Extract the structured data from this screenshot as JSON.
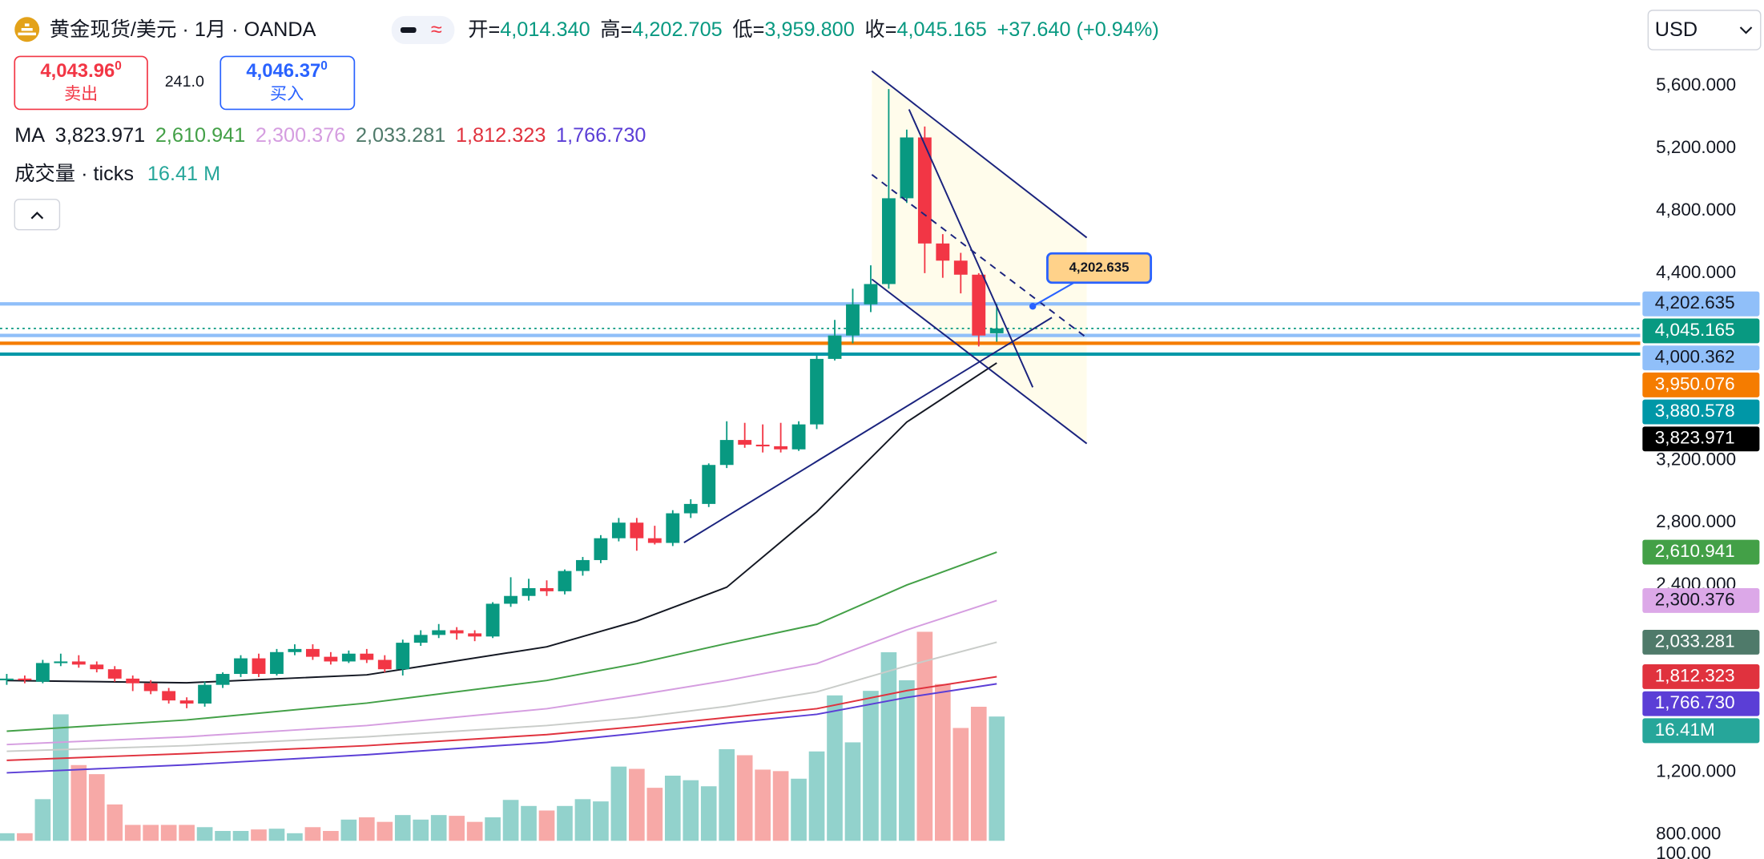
{
  "header": {
    "title": "黄金现货/美元 · 1月 · OANDA",
    "open_label": "开=",
    "open": "4,014.340",
    "high_label": "高=",
    "high": "4,202.705",
    "low_label": "低=",
    "low": "3,959.800",
    "close_label": "收=",
    "close": "4,045.165",
    "change": "+37.640 (+0.94%)",
    "currency": "USD"
  },
  "trade": {
    "sell_price": "4,043.96",
    "sell_sup": "0",
    "sell_label": "卖出",
    "spread": "241.0",
    "buy_price": "4,046.37",
    "buy_sup": "0",
    "buy_label": "买入"
  },
  "legend": {
    "ma_label": "MA",
    "ma_values": [
      {
        "text": "3,823.971",
        "color": "#131722"
      },
      {
        "text": "2,610.941",
        "color": "#43a047"
      },
      {
        "text": "2,300.376",
        "color": "#d59de0"
      },
      {
        "text": "2,033.281",
        "color": "#4f7a6a"
      },
      {
        "text": "1,812.323",
        "color": "#e0323e"
      },
      {
        "text": "1,766.730",
        "color": "#5b3ed6"
      }
    ],
    "volume_label": "成交量 · ticks",
    "volume_value": "16.41 M"
  },
  "callout": "4,202.635",
  "chart_data": {
    "type": "candlestick",
    "open": [
      1790,
      1800,
      1780,
      1900,
      1910,
      1890,
      1860,
      1800,
      1770,
      1720,
      1660,
      1640,
      1760,
      1830,
      1930,
      1830,
      1970,
      1990,
      1940,
      1910,
      1960,
      1920,
      1860,
      2030,
      2080,
      2110,
      2090,
      2070,
      2280,
      2330,
      2380,
      2360,
      2490,
      2560,
      2700,
      2800,
      2700,
      2670,
      2860,
      2920,
      3170,
      3330,
      3300,
      3290,
      3270,
      3430,
      3850,
      4000,
      4200,
      4330,
      4880,
      5270,
      4590,
      4480,
      4390,
      4014.34
    ],
    "high": [
      1830,
      1820,
      1920,
      1960,
      1950,
      1910,
      1880,
      1820,
      1790,
      1740,
      1680,
      1780,
      1840,
      1950,
      1960,
      1990,
      2020,
      2020,
      1970,
      1980,
      1990,
      1950,
      2050,
      2110,
      2150,
      2130,
      2110,
      2290,
      2450,
      2440,
      2430,
      2500,
      2580,
      2720,
      2830,
      2830,
      2780,
      2880,
      2950,
      3180,
      3450,
      3440,
      3430,
      3440,
      3450,
      3870,
      4100,
      4300,
      4450,
      5580,
      5320,
      5340,
      4650,
      4530,
      4400,
      4202.705
    ],
    "low": [
      1760,
      1770,
      1770,
      1880,
      1870,
      1840,
      1780,
      1720,
      1700,
      1640,
      1610,
      1620,
      1740,
      1810,
      1810,
      1820,
      1950,
      1920,
      1890,
      1900,
      1900,
      1840,
      1820,
      2010,
      2060,
      2050,
      2040,
      2060,
      2260,
      2300,
      2330,
      2340,
      2460,
      2540,
      2680,
      2620,
      2660,
      2650,
      2830,
      2900,
      3150,
      3280,
      3250,
      3250,
      3260,
      3400,
      3840,
      3950,
      4150,
      4300,
      4850,
      4400,
      4370,
      4270,
      3930,
      3959.8
    ],
    "close": [
      1800,
      1790,
      1900,
      1910,
      1890,
      1860,
      1800,
      1770,
      1720,
      1660,
      1640,
      1760,
      1830,
      1930,
      1830,
      1970,
      1990,
      1940,
      1910,
      1960,
      1920,
      1860,
      2030,
      2080,
      2110,
      2090,
      2070,
      2280,
      2330,
      2380,
      2360,
      2490,
      2560,
      2700,
      2800,
      2700,
      2670,
      2860,
      2920,
      3170,
      3330,
      3300,
      3290,
      3270,
      3430,
      3850,
      4000,
      4200,
      4330,
      4880,
      5270,
      4590,
      4480,
      4390,
      4000,
      4045.165
    ],
    "volumes": [
      1.0,
      1.0,
      5.5,
      16.7,
      10.0,
      8.8,
      4.8,
      2.1,
      2.1,
      2.1,
      2.1,
      1.8,
      1.3,
      1.3,
      1.5,
      1.6,
      1.0,
      1.8,
      1.3,
      2.8,
      3.1,
      2.5,
      3.4,
      2.8,
      3.4,
      3.3,
      2.5,
      3.1,
      5.4,
      4.6,
      4.0,
      4.6,
      5.5,
      5.2,
      9.8,
      9.5,
      7.0,
      8.6,
      8.0,
      7.2,
      12.1,
      11.3,
      9.4,
      9.2,
      8.2,
      11.8,
      19.2,
      13.0,
      19.8,
      24.9,
      21.2,
      27.6,
      20.7,
      14.9,
      17.7,
      16.41
    ],
    "up_color": "#089981",
    "down_color": "#f23645",
    "volume_up_color": "#92d2cc",
    "volume_down_color": "#f7a9a7",
    "ylim": [
      760,
      6150
    ],
    "volume_ylim": [
      0,
      111
    ],
    "yticks": [
      {
        "value": 5600,
        "label": "5,600.000"
      },
      {
        "value": 5200,
        "label": "5,200.000"
      },
      {
        "value": 4800,
        "label": "4,800.000"
      },
      {
        "value": 4400,
        "label": "4,400.000"
      },
      {
        "value": 3200,
        "label": "3,200.000"
      },
      {
        "value": 2800,
        "label": "2,800.000"
      },
      {
        "value": 2400,
        "label": "2,400.000"
      },
      {
        "value": 1200,
        "label": "1,200.000"
      },
      {
        "value": 800,
        "label": "800.000"
      }
    ],
    "volume_axis_label": "100.00",
    "grid": true,
    "moving_averages": [
      {
        "color": "#131722",
        "x": [
          0,
          10,
          20,
          30,
          35,
          40,
          45,
          50,
          55
        ],
        "values": [
          1788,
          1773,
          1824,
          2004,
          2169,
          2386,
          2869,
          3445,
          3823.971
        ]
      },
      {
        "color": "#43a047",
        "x": [
          0,
          10,
          20,
          30,
          35,
          40,
          45,
          50,
          55
        ],
        "values": [
          1463,
          1535,
          1643,
          1788,
          1896,
          2025,
          2148,
          2400,
          2610.941
        ]
      },
      {
        "color": "#d59de0",
        "x": [
          0,
          10,
          20,
          30,
          35,
          40,
          45,
          50,
          55
        ],
        "values": [
          1377,
          1427,
          1499,
          1607,
          1694,
          1788,
          1896,
          2112,
          2300.376
        ]
      },
      {
        "color": "#c9ccc9",
        "x": [
          0,
          10,
          20,
          30,
          35,
          40,
          45,
          50,
          55
        ],
        "values": [
          1334,
          1370,
          1427,
          1499,
          1550,
          1622,
          1715,
          1881,
          2033.281
        ]
      },
      {
        "color": "#e0323e",
        "x": [
          0,
          10,
          20,
          30,
          35,
          40,
          45,
          50,
          55
        ],
        "values": [
          1276,
          1319,
          1370,
          1441,
          1492,
          1550,
          1607,
          1723,
          1812.323
        ]
      },
      {
        "color": "#5b3ed6",
        "x": [
          0,
          10,
          20,
          30,
          35,
          40,
          45,
          50,
          55
        ],
        "values": [
          1196,
          1247,
          1312,
          1391,
          1449,
          1514,
          1571,
          1679,
          1766.73
        ]
      }
    ],
    "price_lines": [
      {
        "value": 4202.635,
        "color": "#90bff9",
        "style": "solid"
      },
      {
        "value": 4045.165,
        "color": "#089981",
        "style": "dotted"
      },
      {
        "value": 4000.362,
        "color": "#90bff9",
        "style": "solid"
      },
      {
        "value": 3950.076,
        "color": "#f57c00",
        "style": "solid"
      },
      {
        "value": 3880.578,
        "color": "#0097a7",
        "style": "solid"
      }
    ],
    "right_labels": [
      {
        "value": 4202.635,
        "label": "4,202.635",
        "color": "#90bff9",
        "text_color": "#131722"
      },
      {
        "value": 4045.165,
        "label": "4,045.165",
        "color": "#089981",
        "text_color": "#ffffff"
      },
      {
        "value": 4000.362,
        "label": "4,000.362",
        "color": "#90bff9",
        "text_color": "#131722"
      },
      {
        "value": 3950.076,
        "label": "3,950.076",
        "color": "#f57c00",
        "text_color": "#ffffff"
      },
      {
        "value": 3880.578,
        "label": "3,880.578",
        "color": "#0097a7",
        "text_color": "#ffffff"
      },
      {
        "value": 3823.971,
        "label": "3,823.971",
        "color": "#000000",
        "text_color": "#ffffff"
      },
      {
        "value": 2610.941,
        "label": "2,610.941",
        "color": "#43a047",
        "text_color": "#ffffff"
      },
      {
        "value": 2300.376,
        "label": "2,300.376",
        "color": "#dca8e8",
        "text_color": "#131722"
      },
      {
        "value": 2033.281,
        "label": "2,033.281",
        "color": "#4f7a6a",
        "text_color": "#ffffff"
      },
      {
        "value": 1812.323,
        "label": "1,812.323",
        "color": "#e0323e",
        "text_color": "#ffffff"
      },
      {
        "value": 1766.73,
        "label": "1,766.730",
        "color": "#5b3ed6",
        "text_color": "#ffffff"
      },
      {
        "value": 16.41,
        "label": "16.41M",
        "color": "#26a69a",
        "text_color": "#ffffff",
        "axis": "volume"
      }
    ]
  }
}
